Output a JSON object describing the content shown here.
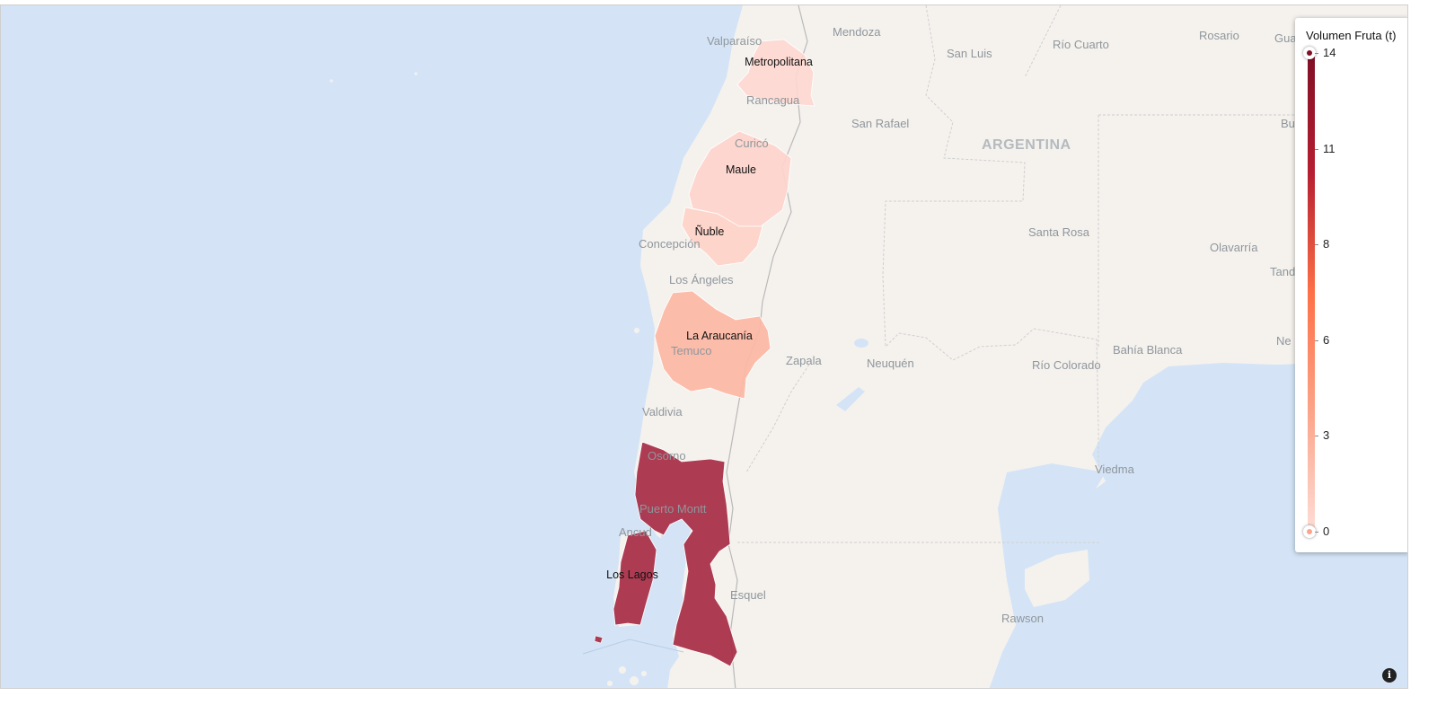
{
  "map": {
    "country_label": "ARGENTINA",
    "place_labels": [
      {
        "id": "valparaiso",
        "text": "Valparaíso"
      },
      {
        "id": "rancagua",
        "text": "Rancagua"
      },
      {
        "id": "curico",
        "text": "Curicó"
      },
      {
        "id": "concepcion",
        "text": "Concepción"
      },
      {
        "id": "los-angeles",
        "text": "Los Ángeles"
      },
      {
        "id": "temuco",
        "text": "Temuco"
      },
      {
        "id": "valdivia",
        "text": "Valdivia"
      },
      {
        "id": "osorno",
        "text": "Osorno"
      },
      {
        "id": "puerto-montt",
        "text": "Puerto Montt"
      },
      {
        "id": "ancud",
        "text": "Ancud"
      },
      {
        "id": "mendoza",
        "text": "Mendoza"
      },
      {
        "id": "san-luis",
        "text": "San Luis"
      },
      {
        "id": "rio-cuarto",
        "text": "Río Cuarto"
      },
      {
        "id": "rosario",
        "text": "Rosario"
      },
      {
        "id": "san-rafael",
        "text": "San Rafael"
      },
      {
        "id": "santa-rosa",
        "text": "Santa Rosa"
      },
      {
        "id": "olavarria",
        "text": "Olavarría"
      },
      {
        "id": "zapala",
        "text": "Zapala"
      },
      {
        "id": "neuquen",
        "text": "Neuquén"
      },
      {
        "id": "rio-colorado",
        "text": "Río Colorado"
      },
      {
        "id": "bahia-blanca",
        "text": "Bahía Blanca"
      },
      {
        "id": "viedma",
        "text": "Viedma"
      },
      {
        "id": "esquel",
        "text": "Esquel"
      },
      {
        "id": "rawson",
        "text": "Rawson"
      },
      {
        "id": "gua",
        "text": "Gua"
      },
      {
        "id": "bu",
        "text": "Bu"
      },
      {
        "id": "tan",
        "text": "Tand"
      },
      {
        "id": "ne",
        "text": "Ne"
      }
    ],
    "regions": [
      {
        "id": "metropolitana",
        "name": "Metropolitana",
        "value": 1,
        "color": "#fdd8d0"
      },
      {
        "id": "maule",
        "name": "Maule",
        "value": 1,
        "color": "#fdd5cc"
      },
      {
        "id": "nuble",
        "name": "Ñuble",
        "value": 1,
        "color": "#fdd2c8"
      },
      {
        "id": "la-araucania",
        "name": "La Araucanía",
        "value": 3,
        "color": "#fcb7a4"
      },
      {
        "id": "los-lagos",
        "name": "Los Lagos",
        "value": 12,
        "color": "#a62c45"
      }
    ]
  },
  "legend": {
    "title": "Volumen Fruta (t)",
    "min": 0,
    "max": 14,
    "ticks": [
      "14",
      "11",
      "8",
      "6",
      "3",
      "0"
    ],
    "color_max": "#800f26",
    "color_min": "#fdddd6"
  },
  "info_button": {
    "icon": "info-icon",
    "glyph": "i"
  }
}
